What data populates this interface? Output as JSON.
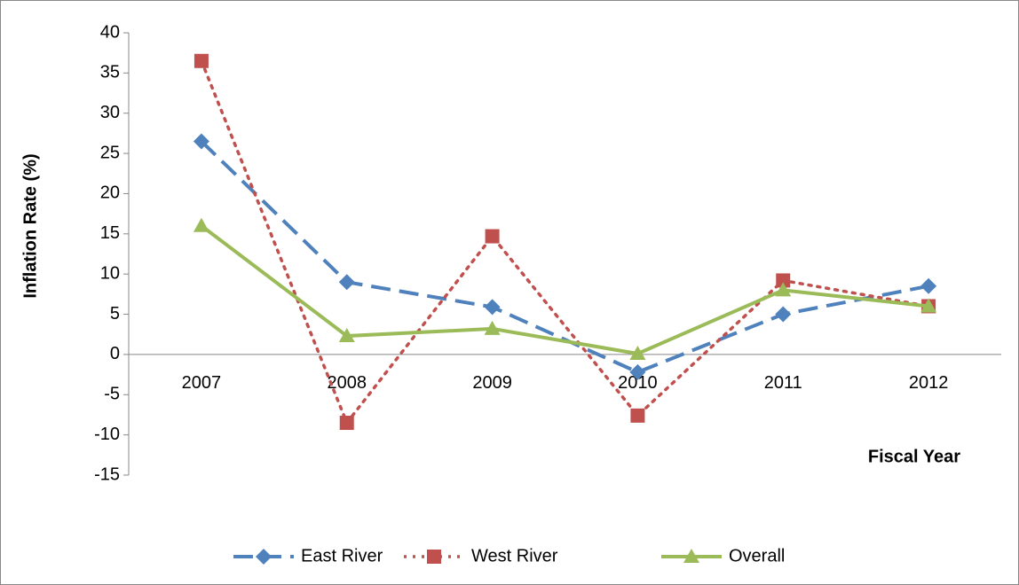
{
  "chart_data": {
    "type": "line",
    "y_label": "Inflation Rate (%)",
    "x_label": "Fiscal Year",
    "categories": [
      "2007",
      "2008",
      "2009",
      "2010",
      "2011",
      "2012"
    ],
    "series": [
      {
        "name": "East River",
        "color": "#4f81bd",
        "line_style": "dashed",
        "marker": "diamond",
        "values": [
          26.5,
          9,
          5.9,
          -2.2,
          5,
          8.5
        ]
      },
      {
        "name": "West River",
        "color": "#c0504d",
        "line_style": "dotted",
        "marker": "square",
        "values": [
          36.5,
          -8.5,
          14.7,
          -7.6,
          9.2,
          6
        ]
      },
      {
        "name": "Overall",
        "color": "#9bbb59",
        "line_style": "solid",
        "marker": "triangle",
        "values": [
          16,
          2.3,
          3.2,
          0.1,
          8,
          6
        ]
      }
    ],
    "ylim": [
      -15,
      40
    ],
    "yticks": [
      -15,
      -10,
      -5,
      0,
      5,
      10,
      15,
      20,
      25,
      30,
      35,
      40
    ],
    "grid": false,
    "legend": "bottom"
  }
}
